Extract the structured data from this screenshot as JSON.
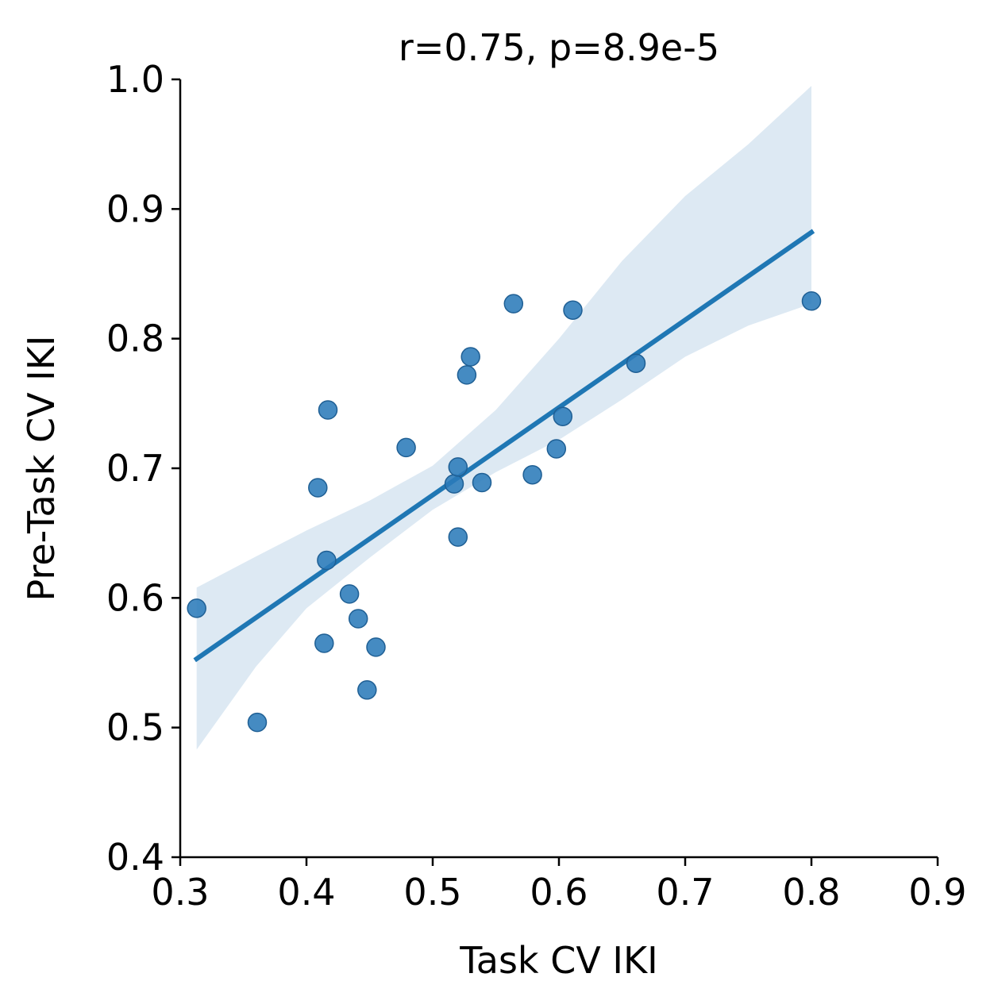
{
  "chart_data": {
    "type": "scatter",
    "title": "r=0.75, p=8.9e-5",
    "xlabel": "Task CV IKI",
    "ylabel": "Pre-Task CV IKI",
    "xlim": [
      0.3,
      0.9
    ],
    "ylim": [
      0.4,
      1.0
    ],
    "xticks": [
      "0.3",
      "0.4",
      "0.5",
      "0.6",
      "0.7",
      "0.8",
      "0.9"
    ],
    "yticks": [
      "0.4",
      "0.5",
      "0.6",
      "0.7",
      "0.8",
      "0.9",
      "1.0"
    ],
    "grid": false,
    "colors": {
      "points": "#2b7bba",
      "point_edge": "#1f5f94",
      "line": "#1f77b4",
      "band": "#dde9f3"
    },
    "series": [
      {
        "x": [
          0.313,
          0.361,
          0.409,
          0.414,
          0.416,
          0.417,
          0.434,
          0.441,
          0.448,
          0.455,
          0.479,
          0.517,
          0.52,
          0.52,
          0.527,
          0.53,
          0.539,
          0.564,
          0.579,
          0.598,
          0.603,
          0.611,
          0.661,
          0.8
        ],
        "y": [
          0.592,
          0.504,
          0.685,
          0.565,
          0.629,
          0.745,
          0.603,
          0.584,
          0.529,
          0.562,
          0.716,
          0.688,
          0.647,
          0.701,
          0.772,
          0.786,
          0.689,
          0.827,
          0.695,
          0.715,
          0.74,
          0.822,
          0.781,
          0.829
        ]
      }
    ],
    "regression": {
      "x": [
        0.313,
        0.8
      ],
      "y": [
        0.553,
        0.882
      ]
    },
    "confidence_band": {
      "x": [
        0.313,
        0.36,
        0.4,
        0.45,
        0.5,
        0.55,
        0.6,
        0.65,
        0.7,
        0.75,
        0.8
      ],
      "upper": [
        0.608,
        0.632,
        0.652,
        0.675,
        0.702,
        0.745,
        0.8,
        0.86,
        0.91,
        0.95,
        0.995
      ],
      "lower": [
        0.483,
        0.547,
        0.592,
        0.631,
        0.668,
        0.697,
        0.722,
        0.753,
        0.786,
        0.81,
        0.827
      ]
    }
  }
}
